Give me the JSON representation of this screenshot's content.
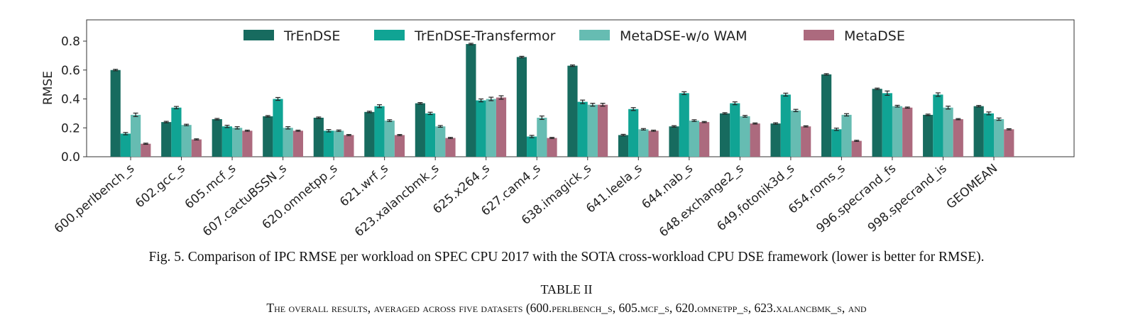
{
  "chart_data": {
    "type": "bar",
    "ylabel": "RMSE",
    "xlabel": "",
    "ylim": [
      0,
      0.95
    ],
    "yticks": [
      "0.0",
      "0.2",
      "0.4",
      "0.6",
      "0.8"
    ],
    "grid": false,
    "legend_position": "top, horizontal",
    "categories": [
      "600.perlbench_s",
      "602.gcc_s",
      "605.mcf_s",
      "607.cactuBSSN_s",
      "620.omnetpp_s",
      "621.wrf_s",
      "623.xalancbmk_s",
      "625.x264_s",
      "627.cam4_s",
      "638.imagick_s",
      "641.leela_s",
      "644.nab_s",
      "648.exchange2_s",
      "649.fotonik3d_s",
      "654.roms_s",
      "996.specrand_fs",
      "998.specrand_is",
      "GEOMEAN"
    ],
    "series": [
      {
        "name": "TrEnDSE",
        "color": "#176b5f",
        "values": [
          0.6,
          0.24,
          0.26,
          0.28,
          0.27,
          0.31,
          0.37,
          0.78,
          0.69,
          0.63,
          0.15,
          0.21,
          0.3,
          0.23,
          0.57,
          0.47,
          0.29,
          0.35
        ],
        "errors": [
          0.005,
          0.005,
          0.005,
          0.005,
          0.005,
          0.005,
          0.005,
          0.005,
          0.005,
          0.005,
          0.005,
          0.005,
          0.005,
          0.005,
          0.005,
          0.005,
          0.005,
          0.005
        ]
      },
      {
        "name": "TrEnDSE-Transfermor",
        "color": "#10a494",
        "values": [
          0.16,
          0.34,
          0.21,
          0.4,
          0.18,
          0.35,
          0.3,
          0.39,
          0.14,
          0.38,
          0.33,
          0.44,
          0.37,
          0.43,
          0.19,
          0.44,
          0.43,
          0.3
        ],
        "errors": [
          0.008,
          0.008,
          0.008,
          0.01,
          0.008,
          0.01,
          0.008,
          0.01,
          0.008,
          0.012,
          0.01,
          0.01,
          0.01,
          0.01,
          0.008,
          0.015,
          0.012,
          0.01
        ]
      },
      {
        "name": "MetaDSE-w/o WAM",
        "color": "#66bcb2",
        "values": [
          0.29,
          0.22,
          0.2,
          0.2,
          0.18,
          0.25,
          0.21,
          0.4,
          0.27,
          0.36,
          0.19,
          0.25,
          0.28,
          0.32,
          0.29,
          0.35,
          0.34,
          0.26
        ],
        "errors": [
          0.012,
          0.005,
          0.008,
          0.008,
          0.005,
          0.006,
          0.006,
          0.012,
          0.012,
          0.01,
          0.005,
          0.006,
          0.006,
          0.008,
          0.008,
          0.006,
          0.01,
          0.008
        ]
      },
      {
        "name": "MetaDSE",
        "color": "#ac6a7e",
        "values": [
          0.09,
          0.12,
          0.18,
          0.18,
          0.15,
          0.15,
          0.13,
          0.41,
          0.13,
          0.36,
          0.18,
          0.24,
          0.23,
          0.21,
          0.11,
          0.34,
          0.26,
          0.19
        ],
        "errors": [
          0.004,
          0.004,
          0.004,
          0.004,
          0.004,
          0.004,
          0.004,
          0.012,
          0.004,
          0.01,
          0.004,
          0.004,
          0.004,
          0.004,
          0.004,
          0.004,
          0.004,
          0.004
        ]
      }
    ]
  },
  "caption": {
    "figure": "Fig. 5.  Comparison of IPC RMSE per workload on SPEC CPU 2017 with the SOTA cross-workload CPU DSE framework (lower is better for RMSE).",
    "table_title": "TABLE II",
    "table_caption": "The overall results, averaged across five datasets (600.perlbench_s, 605.mcf_s, 620.omnetpp_s, 623.xalancbmk_s, and"
  }
}
